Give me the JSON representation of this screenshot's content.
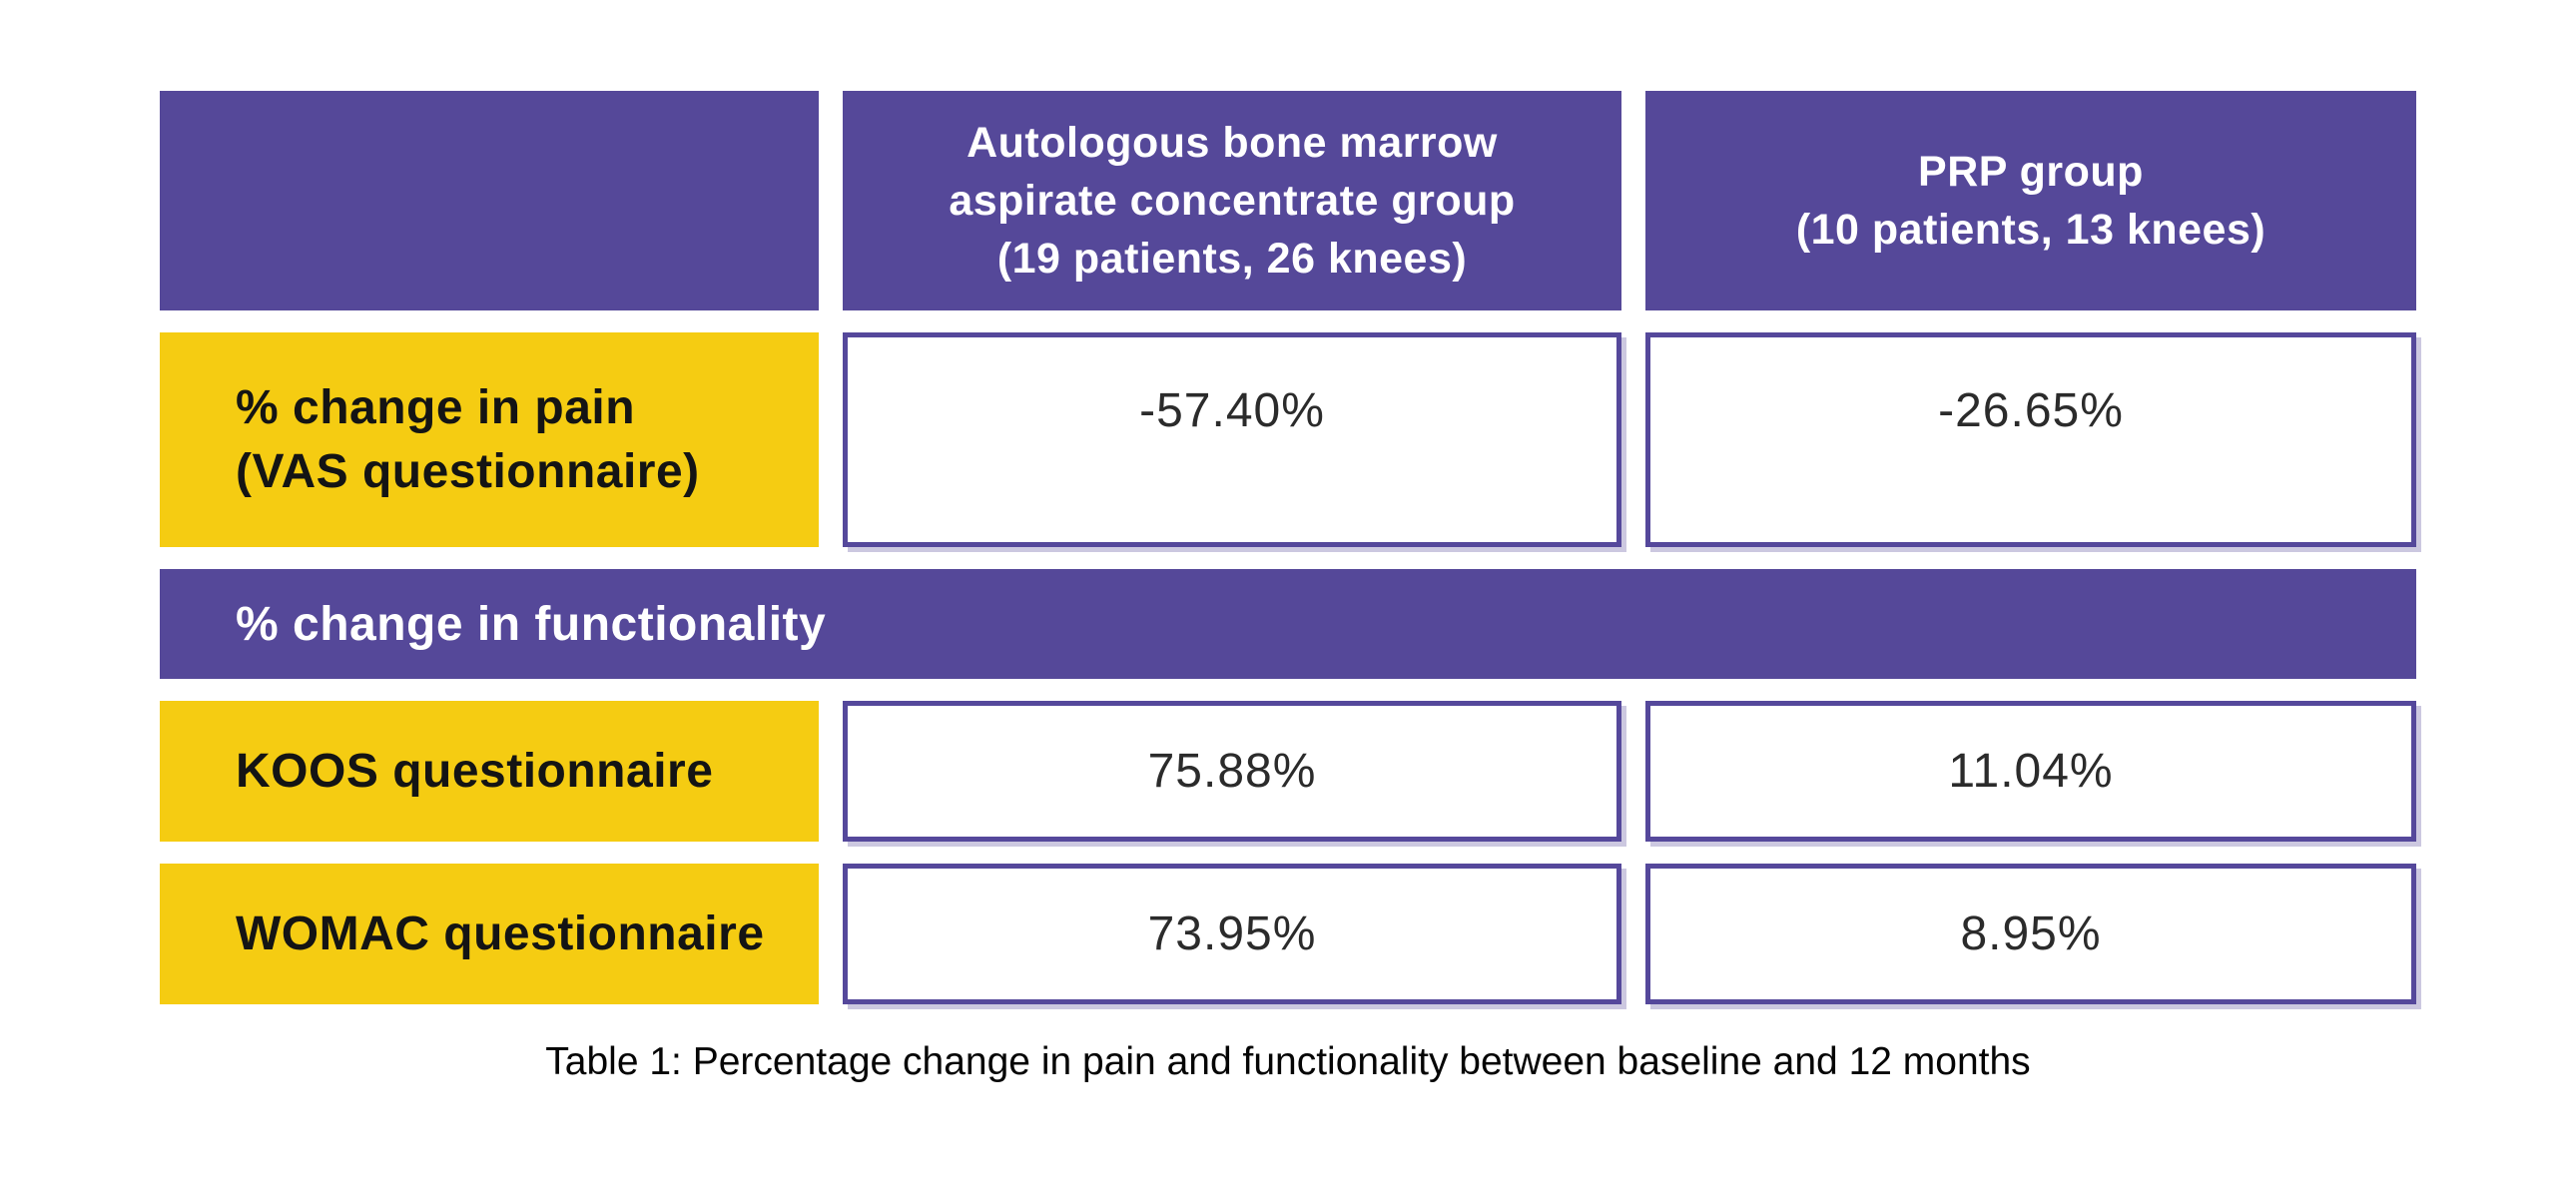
{
  "colors": {
    "header_bg": "#554899",
    "header_text": "#FFFFFF",
    "label_bg": "#F5CC12",
    "label_text": "#141414",
    "cell_bg": "#FFFFFF",
    "cell_border": "#55489B",
    "value_text": "#2B2B2B",
    "caption_text": "#050505"
  },
  "chart_data": {
    "type": "table",
    "caption": "Table 1: Percentage change in pain and functionality between baseline and 12 months",
    "columns": [
      {
        "title_lines": [],
        "subtitle": ""
      },
      {
        "title_lines": [
          "Autologous bone marrow",
          "aspirate concentrate group"
        ],
        "subtitle": "(19 patients, 26 knees)"
      },
      {
        "title_lines": [
          "PRP group"
        ],
        "subtitle": "(10 patients, 13 knees)"
      }
    ],
    "rows": [
      {
        "kind": "data",
        "label": "% change in pain (VAS questionnaire)",
        "label_lines": [
          "% change in pain",
          "(VAS questionnaire)"
        ],
        "values": [
          "-57.40%",
          "-26.65%"
        ]
      },
      {
        "kind": "section",
        "label": "% change in functionality"
      },
      {
        "kind": "data",
        "label": "KOOS questionnaire",
        "label_lines": [
          "KOOS questionnaire"
        ],
        "values": [
          "75.88%",
          "11.04%"
        ]
      },
      {
        "kind": "data",
        "label": "WOMAC questionnaire",
        "label_lines": [
          "WOMAC questionnaire"
        ],
        "values": [
          "73.95%",
          "8.95%"
        ]
      }
    ]
  }
}
